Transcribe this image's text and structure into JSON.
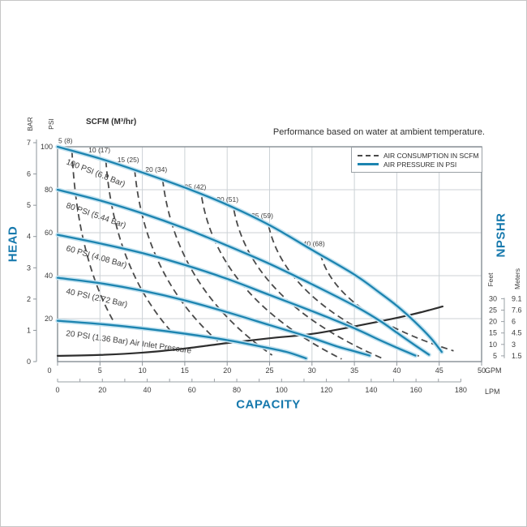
{
  "title": "Performance based on water at ambient temperature.",
  "scfm_header": "SCFM (M³/hr)",
  "axis_titles": {
    "head": "HEAD",
    "capacity": "CAPACITY",
    "npshr": "NPSHR"
  },
  "units": {
    "bar": "BAR",
    "psi": "PSI",
    "gpm": "GPM",
    "lpm": "LPM",
    "feet": "Feet",
    "meters": "Meters"
  },
  "legend": {
    "consumption": "AIR CONSUMPTION IN SCFM",
    "pressure": "AIR PRESSURE IN PSI"
  },
  "colors": {
    "curve_blue": "#1c84b0",
    "curve_halo": "#c2e2f0",
    "accent_blue": "#1779ad",
    "scfm_label_blue": "#4596c0",
    "dash_gray": "#4a4a4a",
    "npshr_black": "#2e2e2e",
    "grid": "#ccd2d6",
    "border": "#8e959b",
    "curve_text": "#1d3e58"
  },
  "chart_data": {
    "type": "line",
    "title": "Performance based on water at ambient temperature.",
    "xlabel": "CAPACITY",
    "ylabel": "HEAD",
    "x_gpm": {
      "unit": "GPM",
      "range": [
        0,
        50
      ],
      "ticks": [
        0,
        5,
        10,
        15,
        20,
        25,
        30,
        35,
        40,
        45,
        50
      ]
    },
    "x_lpm": {
      "unit": "LPM",
      "ticks": [
        0,
        20,
        40,
        60,
        80,
        100,
        120,
        140,
        160,
        180
      ]
    },
    "y_psi": {
      "unit": "PSI",
      "range": [
        0,
        100
      ],
      "ticks": [
        100,
        80,
        60,
        40,
        20
      ]
    },
    "y_bar": {
      "unit": "BAR",
      "ticks": [
        0,
        1,
        2,
        3,
        4,
        5,
        6,
        7
      ]
    },
    "npshr_feet": {
      "unit": "Feet",
      "ticks": [
        30,
        25,
        20,
        15,
        10,
        5
      ]
    },
    "npshr_meters": {
      "unit": "Meters",
      "ticks": [
        "9.1",
        "7.6",
        "6",
        "4.5",
        "3",
        "1.5"
      ]
    },
    "grid": true,
    "legend_position": "top-right",
    "pressure_curves": [
      {
        "label": "100 PSI (6.8 Bar)",
        "points": [
          [
            0,
            100
          ],
          [
            5,
            94.5
          ],
          [
            10,
            88
          ],
          [
            15,
            81
          ],
          [
            20,
            73
          ],
          [
            25,
            63.5
          ],
          [
            30,
            52
          ],
          [
            35,
            40.5
          ],
          [
            38,
            32
          ],
          [
            40,
            26
          ],
          [
            42,
            19
          ],
          [
            44,
            11
          ],
          [
            45.3,
            4.5
          ]
        ]
      },
      {
        "label": "80 PSI (5.44 Bar)",
        "points": [
          [
            0,
            80
          ],
          [
            5,
            75
          ],
          [
            10,
            69
          ],
          [
            15,
            62
          ],
          [
            20,
            54
          ],
          [
            25,
            45.5
          ],
          [
            30,
            36
          ],
          [
            35,
            26
          ],
          [
            38,
            19
          ],
          [
            40,
            13.5
          ],
          [
            42,
            8
          ],
          [
            43.8,
            3.2
          ]
        ]
      },
      {
        "label": "60 PSI (4.08 Bar)",
        "points": [
          [
            0,
            59
          ],
          [
            5,
            55
          ],
          [
            10,
            50.5
          ],
          [
            15,
            45
          ],
          [
            20,
            38.5
          ],
          [
            25,
            31
          ],
          [
            30,
            23.5
          ],
          [
            35,
            15.5
          ],
          [
            38,
            10
          ],
          [
            40,
            6.5
          ],
          [
            42.2,
            2.8
          ]
        ]
      },
      {
        "label": "40 PSI (2.72 Bar)",
        "points": [
          [
            0,
            39
          ],
          [
            5,
            36.5
          ],
          [
            10,
            33
          ],
          [
            15,
            28.5
          ],
          [
            20,
            23
          ],
          [
            25,
            17
          ],
          [
            30,
            11
          ],
          [
            33,
            7
          ],
          [
            35,
            4.8
          ],
          [
            36.8,
            2.8
          ]
        ]
      },
      {
        "label": "20 PSI (1.36 Bar) Air Inlet Pressure",
        "points": [
          [
            0,
            19
          ],
          [
            5,
            17.5
          ],
          [
            10,
            15.5
          ],
          [
            15,
            13
          ],
          [
            20,
            10
          ],
          [
            24,
            7
          ],
          [
            27,
            4.5
          ],
          [
            29.3,
            1.5
          ]
        ]
      }
    ],
    "consumption_curves": [
      {
        "label": "5 (8)",
        "start": [
          1.7,
          98
        ],
        "end": [
          6.7,
          18
        ]
      },
      {
        "label": "10 (17)",
        "start": [
          5.7,
          93.5
        ],
        "end": [
          13.4,
          14
        ]
      },
      {
        "label": "15 (25)",
        "start": [
          9.1,
          89
        ],
        "end": [
          18.9,
          9.5
        ]
      },
      {
        "label": "20 (34)",
        "start": [
          12.4,
          84.5
        ],
        "end": [
          25.3,
          3
        ]
      },
      {
        "label": "25 (42)",
        "start": [
          17,
          76.5
        ],
        "end": [
          33.5,
          1.2
        ]
      },
      {
        "label": "30 (51)",
        "start": [
          20.8,
          70.5
        ],
        "end": [
          38.3,
          1.5
        ]
      },
      {
        "label": "35 (59)",
        "start": [
          24.9,
          63
        ],
        "end": [
          43,
          2
        ]
      },
      {
        "label": "40 (68)",
        "start": [
          31,
          50
        ],
        "end": [
          46.7,
          5
        ]
      }
    ],
    "npshr_curve": {
      "points_gpm_feet": [
        [
          0,
          5
        ],
        [
          5,
          5.4
        ],
        [
          10,
          6.4
        ],
        [
          15,
          8.2
        ],
        [
          20,
          10.6
        ],
        [
          25,
          12.7
        ],
        [
          30,
          14.6
        ],
        [
          35,
          17.9
        ],
        [
          40,
          21.6
        ],
        [
          43,
          24.2
        ],
        [
          45.4,
          26.6
        ]
      ]
    }
  }
}
